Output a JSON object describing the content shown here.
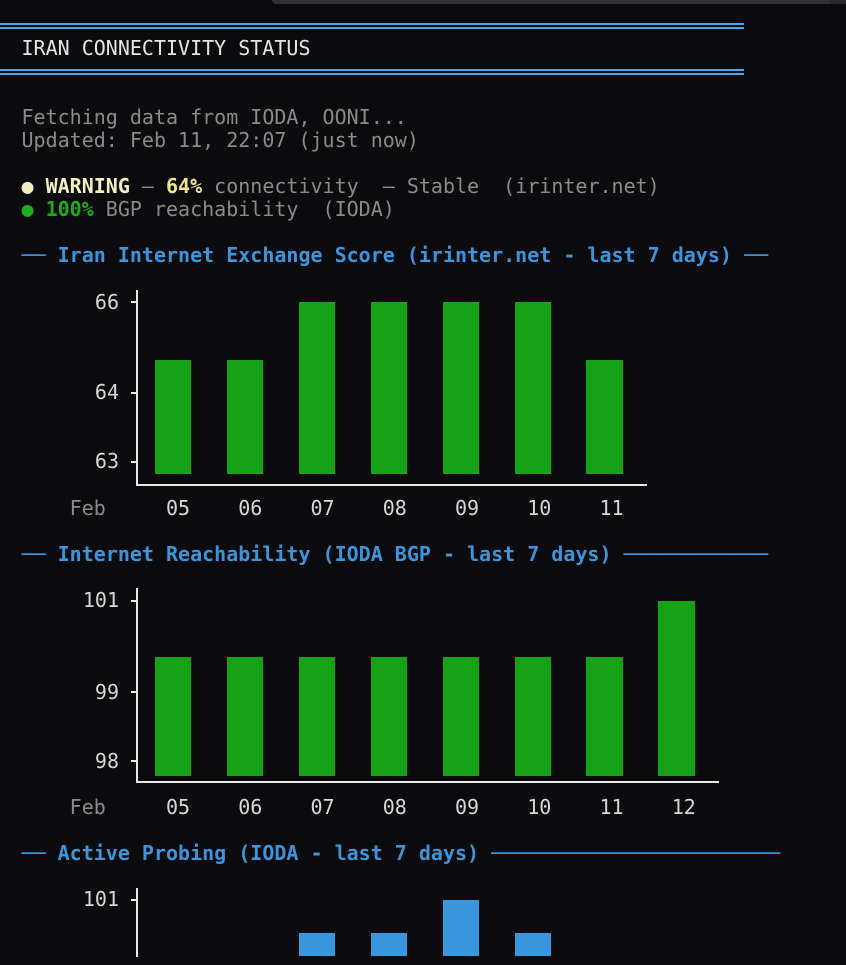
{
  "window": {
    "titlebar_fragment_note": "partial dark title/tab bar strip at top right, no visible text"
  },
  "terminal": {
    "title": "IRAN CONNECTIVITY STATUS",
    "status_lines": [
      {
        "name": "fetching-line",
        "segments": [
          {
            "text": "Fetching data from IODA, OONI...",
            "style": "gray"
          }
        ]
      },
      {
        "name": "updated-line",
        "segments": [
          {
            "text": "Updated: Feb 11, 22:07 (just now)",
            "style": "gray"
          }
        ]
      },
      {
        "name": "warning-line",
        "segments": [
          {
            "text": "● ",
            "style": "yellow"
          },
          {
            "text": "WARNING",
            "style": "yellow bold"
          },
          {
            "text": " — ",
            "style": "gray"
          },
          {
            "text": "64%",
            "style": "yellow-bright bold"
          },
          {
            "text": " connectivity  — Stable  (irinter.net)",
            "style": "gray"
          }
        ]
      },
      {
        "name": "bgp-line",
        "segments": [
          {
            "text": "● ",
            "style": "green"
          },
          {
            "text": "100%",
            "style": "green bold"
          },
          {
            "text": " BGP reachability  (IODA)",
            "style": "gray"
          }
        ]
      }
    ]
  },
  "chart_data": [
    {
      "type": "bar",
      "title": "Iran Internet Exchange Score (irinter.net - last 7 days)",
      "x_prefix_label": "Feb",
      "categories": [
        "05",
        "06",
        "07",
        "08",
        "09",
        "10",
        "11"
      ],
      "values": [
        64.73,
        64.73,
        66,
        66,
        66,
        66,
        64.73
      ],
      "yticks": [
        66,
        64,
        63
      ],
      "ylim": [
        62.8,
        66
      ],
      "xlabel": "",
      "ylabel": "",
      "grid": false,
      "legend": false,
      "bar_color": "#16A116",
      "accent_color": "#3C95DC"
    },
    {
      "type": "bar",
      "title": "Internet Reachability (IODA BGP - last 7 days)",
      "x_prefix_label": "Feb",
      "categories": [
        "05",
        "06",
        "07",
        "08",
        "09",
        "10",
        "11",
        "12"
      ],
      "values": [
        99.77,
        99.77,
        99.77,
        99.77,
        99.77,
        99.77,
        99.77,
        101
      ],
      "yticks": [
        101,
        99,
        98
      ],
      "ylim": [
        97.8,
        101
      ],
      "xlabel": "",
      "ylabel": "",
      "grid": false,
      "legend": false,
      "bar_color": "#16A116",
      "accent_color": "#3C95DC"
    },
    {
      "type": "bar",
      "title": "Active Probing (IODA - last 7 days)",
      "x_prefix_label": "",
      "categories": [],
      "bars": [
        {
          "slot": 2,
          "value": 100.27
        },
        {
          "slot": 3,
          "value": 100.27
        },
        {
          "slot": 4,
          "value": 101
        },
        {
          "slot": 5,
          "value": 100.27
        }
      ],
      "yticks": [
        101
      ],
      "ylim": [
        99.8,
        101
      ],
      "xlabel": "",
      "ylabel": "",
      "grid": false,
      "legend": false,
      "bar_color": "#3996DC",
      "accent_color": "#3C95DC"
    }
  ],
  "colors": {
    "background": "#0B0B0D",
    "box_rule_blue": "#46A5F1",
    "section_header_blue": "#3C95DC",
    "bar_green": "#16A116",
    "bar_blue": "#3996DC",
    "text_gray": "#8A8A8A",
    "text_white": "#E7E5E2",
    "text_yellow": "#F2EFC0",
    "text_yellow_bright": "#EFE68C",
    "text_green": "#1CAC1C",
    "axis_white": "#E9E9E9"
  }
}
